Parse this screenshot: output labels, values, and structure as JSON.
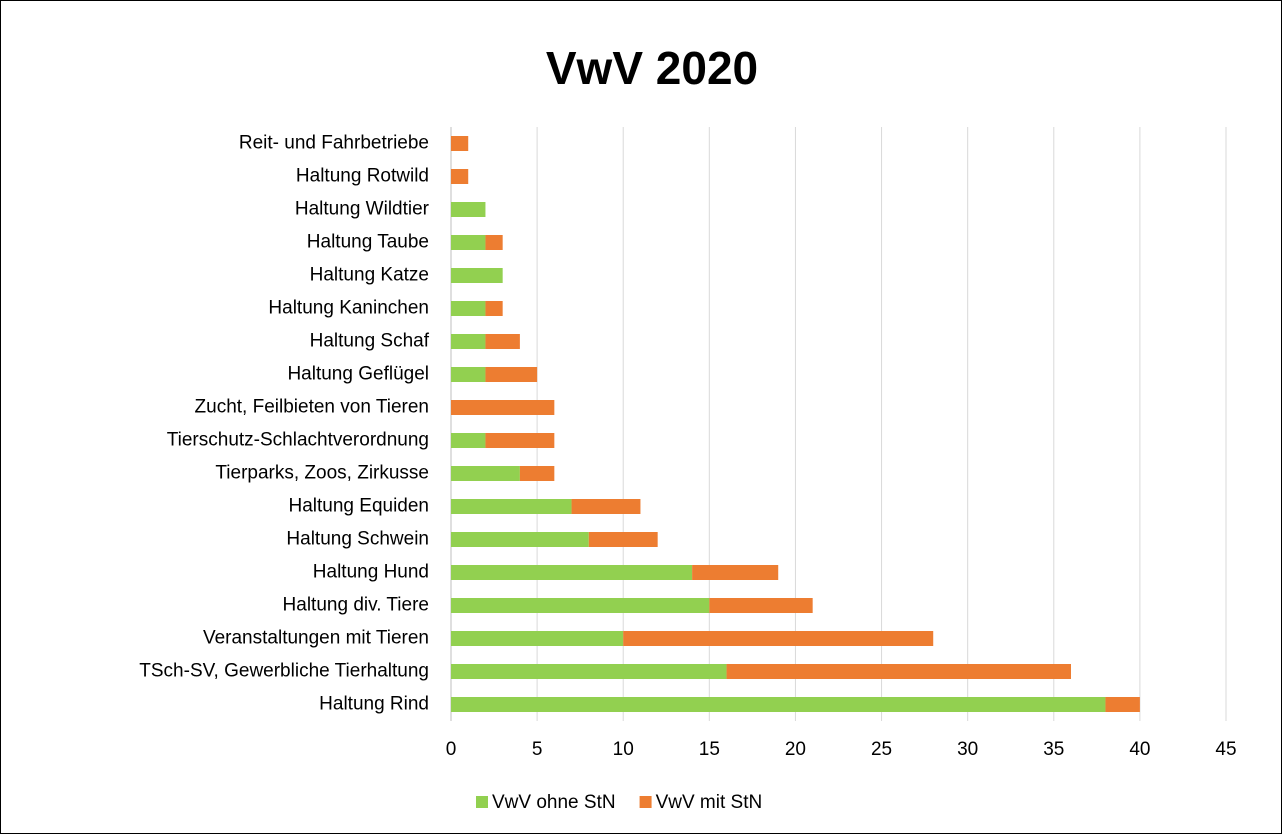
{
  "chart_data": {
    "type": "bar",
    "orientation": "horizontal",
    "stacked": true,
    "title": "VwV 2020",
    "categories": [
      "Haltung Rind",
      "TSch-SV, Gewerbliche Tierhaltung",
      "Veranstaltungen mit Tieren",
      "Haltung div. Tiere",
      "Haltung Hund",
      "Haltung Schwein",
      "Haltung Equiden",
      "Tierparks, Zoos, Zirkusse",
      "Tierschutz-Schlachtverordnung",
      "Zucht, Feilbieten von Tieren",
      "Haltung Geflügel",
      "Haltung Schaf",
      "Haltung Kaninchen",
      "Haltung Katze",
      "Haltung Taube",
      "Haltung Wildtier",
      "Haltung Rotwild",
      "Reit- und Fahrbetriebe"
    ],
    "series": [
      {
        "name": "VwV ohne StN",
        "color": "#92d050",
        "values": [
          38,
          16,
          10,
          15,
          14,
          8,
          7,
          4,
          2,
          0,
          2,
          2,
          2,
          3,
          2,
          2,
          0,
          0
        ]
      },
      {
        "name": "VwV mit StN",
        "color": "#ed7d31",
        "values": [
          2,
          20,
          18,
          6,
          5,
          4,
          4,
          2,
          4,
          6,
          3,
          2,
          1,
          0,
          1,
          0,
          1,
          1
        ]
      }
    ],
    "xlim": [
      0,
      45
    ],
    "xticks": [
      0,
      5,
      10,
      15,
      20,
      25,
      30,
      35,
      40,
      45
    ],
    "grid": true,
    "legend": "bottom"
  }
}
